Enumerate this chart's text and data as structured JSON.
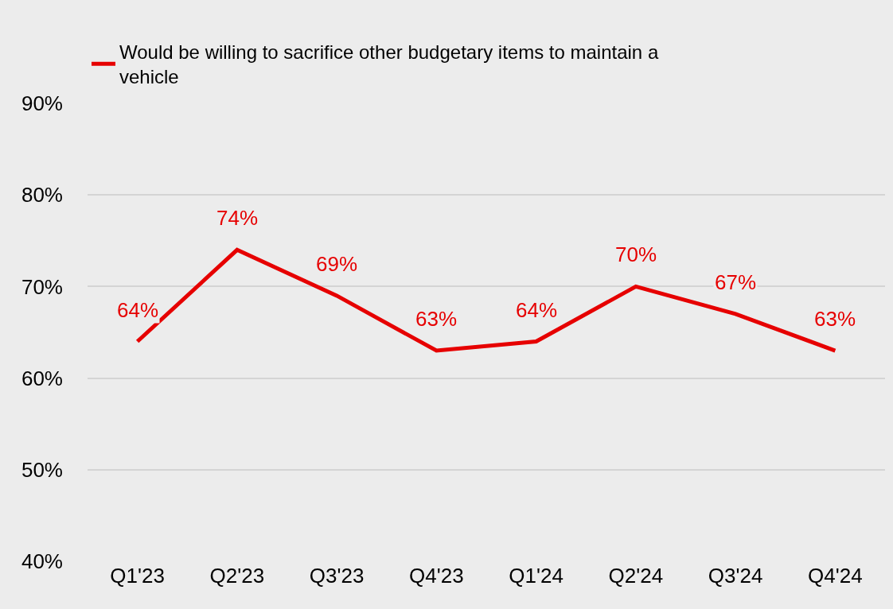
{
  "chart_data": {
    "type": "line",
    "categories": [
      "Q1'23",
      "Q2'23",
      "Q3'23",
      "Q4'23",
      "Q1'24",
      "Q2'24",
      "Q3'24",
      "Q4'24"
    ],
    "series": [
      {
        "name": "Would be willing to sacrifice other budgetary items to maintain a vehicle",
        "color": "#e60000",
        "values": [
          64,
          74,
          69,
          63,
          64,
          70,
          67,
          63
        ],
        "value_labels": [
          "64%",
          "74%",
          "69%",
          "63%",
          "64%",
          "70%",
          "67%",
          "63%"
        ]
      }
    ],
    "ylim": [
      40,
      90
    ],
    "yticks": [
      {
        "value": 40,
        "label": "40%"
      },
      {
        "value": 50,
        "label": "50%"
      },
      {
        "value": 60,
        "label": "60%"
      },
      {
        "value": 70,
        "label": "70%"
      },
      {
        "value": 80,
        "label": "80%"
      },
      {
        "value": 90,
        "label": "90%"
      }
    ],
    "grid": "y",
    "legend": "top left",
    "marker": "none",
    "line_style": "solid"
  }
}
